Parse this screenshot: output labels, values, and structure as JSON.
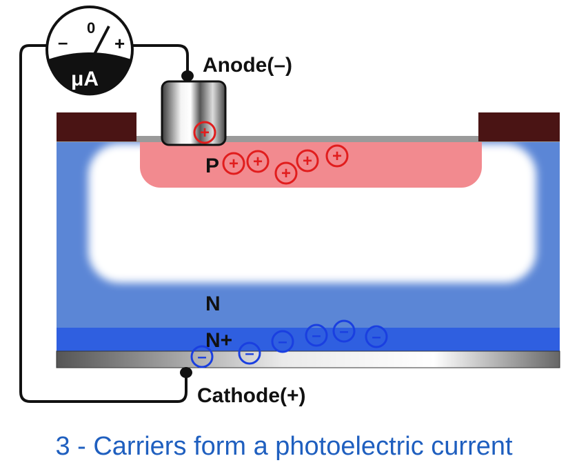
{
  "diagram": {
    "meter": {
      "unit": "μA",
      "zero": "0",
      "minus": "–",
      "plus": "+"
    },
    "terminals": {
      "anode": "Anode(–)",
      "cathode": "Cathode(+)"
    },
    "regions": {
      "p": "P",
      "n": "N",
      "n_plus": "N+"
    },
    "carriers": {
      "hole_symbol": "+",
      "electron_symbol": "–"
    },
    "colors": {
      "p_region": "#f28a8f",
      "n_region": "#5b86d6",
      "n_plus_layer": "#2f5fe0",
      "contact_pads": "#4a1414",
      "hole": "#e11d1d",
      "electron": "#1a3fe0",
      "caption": "#1f5fbf"
    }
  },
  "caption": "3 - Carriers form a photoelectric current"
}
